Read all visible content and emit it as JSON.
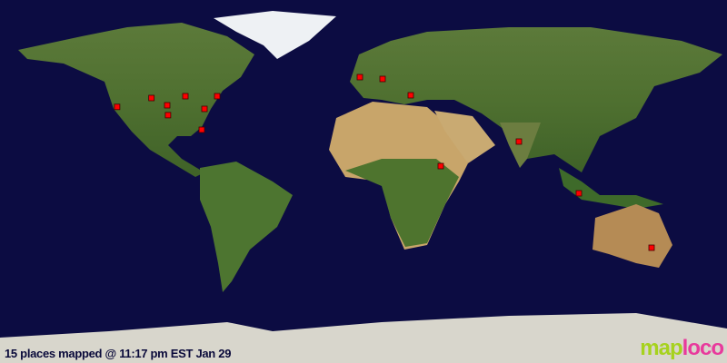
{
  "map": {
    "projection": "equirectangular",
    "ocean_color": "#0c0c42",
    "marker_color": "#ff0000",
    "places": [
      {
        "lat": 37,
        "lon": -122
      },
      {
        "lat": 41.4,
        "lon": -105
      },
      {
        "lat": 37.8,
        "lon": -97.2
      },
      {
        "lat": 32.9,
        "lon": -96.8
      },
      {
        "lat": 42.3,
        "lon": -88.2
      },
      {
        "lat": 36,
        "lon": -78.75
      },
      {
        "lat": 42.3,
        "lon": -72.45
      },
      {
        "lat": 25.65,
        "lon": -80.1
      },
      {
        "lat": 51.75,
        "lon": -1.8
      },
      {
        "lat": 50.85,
        "lon": 9.45
      },
      {
        "lat": 42.75,
        "lon": 23.4
      },
      {
        "lat": 7.65,
        "lon": 38.25
      },
      {
        "lat": 19.8,
        "lon": 76.95
      },
      {
        "lat": -5.85,
        "lon": 106.65
      },
      {
        "lat": -32.85,
        "lon": 142.65
      }
    ]
  },
  "caption": "15 places mapped @ 11:17 pm EST Jan 29",
  "logo": {
    "part1": "map",
    "part2": "loco"
  }
}
